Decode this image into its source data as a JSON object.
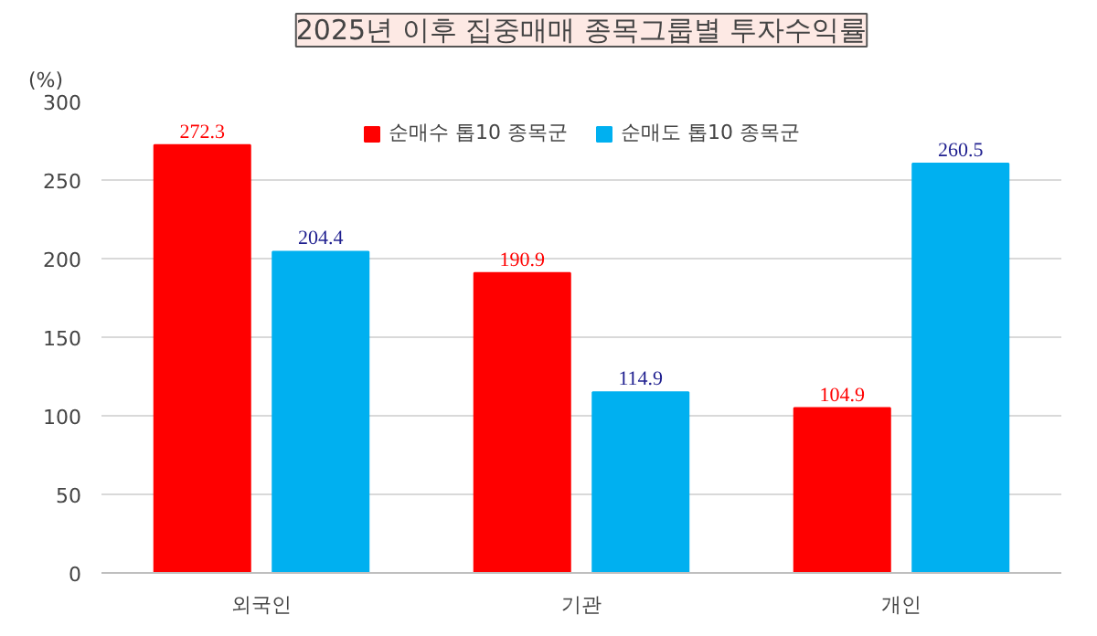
{
  "chart_data": {
    "type": "bar",
    "title": "2025년 이후 집중매매 종목그룹별 투자수익률",
    "ylabel": "(%)",
    "categories": [
      "외국인",
      "기관",
      "개인"
    ],
    "series": [
      {
        "name": "순매수 톱10 종목군",
        "color": "#ff0000",
        "values": [
          272.3,
          190.9,
          104.9
        ]
      },
      {
        "name": "순매도 톱10 종목군",
        "color": "#00b0f0",
        "values": [
          204.4,
          114.9,
          260.5
        ]
      }
    ],
    "ylim": [
      0,
      300
    ],
    "yticks": [
      0,
      50,
      100,
      150,
      200,
      250,
      300
    ],
    "grid": "y",
    "legend": "top",
    "data_labels": true
  }
}
